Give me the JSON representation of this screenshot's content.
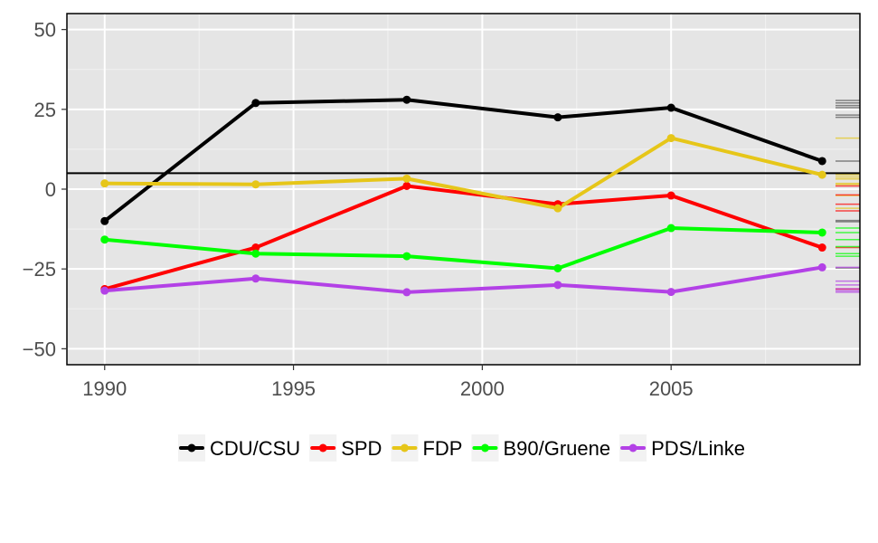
{
  "chart_data": {
    "type": "line",
    "title": "",
    "xlabel": "",
    "ylabel": "",
    "x": [
      1990,
      1994,
      1998,
      2002,
      2005,
      2009
    ],
    "xlim": [
      1989,
      2010
    ],
    "ylim": [
      -55,
      55
    ],
    "x_ticks": [
      1990,
      1995,
      2000,
      2005
    ],
    "x_tick_labels": [
      "1990",
      "1995",
      "2000",
      "2005"
    ],
    "y_ticks": [
      50,
      25,
      0,
      -25,
      -50
    ],
    "y_tick_labels": [
      "50",
      "25",
      "0",
      "−25",
      "−50"
    ],
    "reference_line": 5,
    "grid": true,
    "legend_position": "bottom",
    "series": [
      {
        "name": "CDU/CSU",
        "color": "#000000",
        "values": [
          -10,
          27,
          28,
          22.5,
          25.5,
          8.8
        ]
      },
      {
        "name": "SPD",
        "color": "#ff0000",
        "values": [
          -31.3,
          -18.3,
          1,
          -4.7,
          -2,
          -18.3
        ]
      },
      {
        "name": "FDP",
        "color": "#e6c619",
        "values": [
          1.8,
          1.5,
          3.3,
          -6,
          16,
          4.5
        ]
      },
      {
        "name": "B90/Gruene",
        "color": "#00ff00",
        "values": [
          -15.8,
          -20.2,
          -21,
          -24.8,
          -12.2,
          -13.6
        ]
      },
      {
        "name": "PDS/Linke",
        "color": "#b341e6",
        "values": [
          -31.8,
          -28,
          -32.3,
          -30,
          -32.2,
          -24.5
        ]
      }
    ],
    "rug": [
      {
        "color": "#555555",
        "values": [
          27.8,
          27,
          26.2,
          25.5,
          23.2,
          22.5,
          8.8,
          -9.8,
          -10.2,
          -24.7
        ]
      },
      {
        "color": "#e6c619",
        "values": [
          16,
          4.5,
          3.8,
          3.2,
          1.8,
          1.5,
          -2,
          -6
        ]
      },
      {
        "color": "#ff0000",
        "values": [
          1,
          -1.8,
          -4.7,
          -6.8,
          -18.3,
          -31.3
        ]
      },
      {
        "color": "#00ff00",
        "values": [
          -12.2,
          -13.6,
          -15.8,
          -18,
          -20.2,
          -21
        ]
      },
      {
        "color": "#b341e6",
        "values": [
          -24.5,
          -28.8,
          -30,
          -31.2,
          -31.8,
          -32.3
        ]
      }
    ]
  }
}
